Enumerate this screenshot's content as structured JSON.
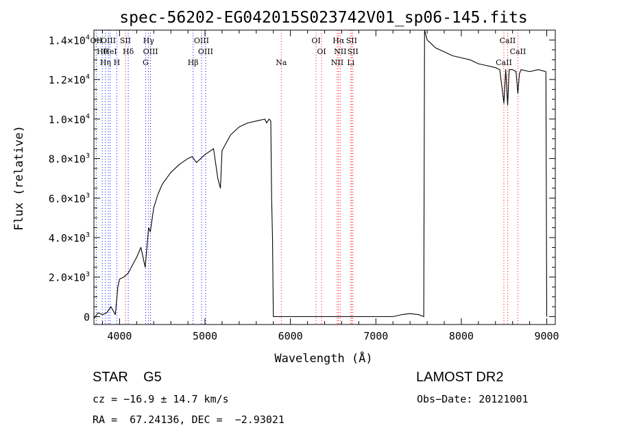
{
  "chart_data": {
    "type": "line",
    "title": "spec-56202-EG042015S023742V01_sp06-145.fits",
    "xlabel": "Wavelength (Å)",
    "ylabel": "Flux (relative)",
    "xlim": [
      3700,
      9100
    ],
    "ylim": [
      -400,
      14500
    ],
    "x_ticks": [
      4000,
      5000,
      6000,
      7000,
      8000,
      9000
    ],
    "x_tick_labels": [
      "4000",
      "5000",
      "6000",
      "7000",
      "8000",
      "9000"
    ],
    "y_ticks": [
      0,
      2000,
      4000,
      6000,
      8000,
      10000,
      12000,
      14000
    ],
    "y_tick_mantissa": [
      "0",
      "2.0×10",
      "4.0×10",
      "6.0×10",
      "8.0×10",
      "1.0×10",
      "1.2×10",
      "1.4×10"
    ],
    "y_tick_exponent": [
      "",
      "3",
      "3",
      "3",
      "3",
      "4",
      "4",
      "4"
    ],
    "series": [
      {
        "color": "#000000",
        "x": [
          3700,
          3750,
          3800,
          3850,
          3900,
          3950,
          3980,
          4000,
          4050,
          4100,
          4150,
          4200,
          4250,
          4300,
          4340,
          4360,
          4400,
          4450,
          4500,
          4600,
          4700,
          4800,
          4850,
          4900,
          5000,
          5100,
          5150,
          5180,
          5200,
          5300,
          5400,
          5500,
          5600,
          5700,
          5720,
          5750,
          5770,
          5780,
          5790,
          5800,
          6000,
          6500,
          7000,
          7200,
          7300,
          7400,
          7500,
          7560,
          7570,
          7600,
          7650,
          7700,
          7800,
          7900,
          8000,
          8100,
          8200,
          8300,
          8400,
          8450,
          8498,
          8520,
          8542,
          8560,
          8600,
          8640,
          8662,
          8680,
          8700,
          8800,
          8900,
          8990,
          9000
        ],
        "y": [
          -100,
          200,
          100,
          200,
          500,
          100,
          1500,
          1900,
          2000,
          2200,
          2600,
          3000,
          3500,
          2500,
          4500,
          4300,
          5500,
          6200,
          6700,
          7300,
          7700,
          8000,
          8100,
          7800,
          8200,
          8500,
          7000,
          6500,
          8400,
          9200,
          9600,
          9800,
          9900,
          10000,
          9800,
          10000,
          9900,
          6000,
          4000,
          0,
          0,
          0,
          0,
          0,
          100,
          150,
          100,
          0,
          14500,
          14000,
          13800,
          13600,
          13400,
          13200,
          13100,
          13000,
          12800,
          12700,
          12600,
          12500,
          10800,
          12500,
          10700,
          12500,
          12500,
          12400,
          11300,
          12300,
          12500,
          12400,
          12500,
          12400,
          0
        ]
      }
    ],
    "lines": [
      {
        "wave": 3727,
        "label": "OII"
      },
      {
        "wave": 3798,
        "label": "Hθ"
      },
      {
        "wave": 3835,
        "label": "Hη"
      },
      {
        "wave": 3869,
        "label": "OIII"
      },
      {
        "wave": 3889,
        "label": "HeI"
      },
      {
        "wave": 3968,
        "label": "H"
      },
      {
        "wave": 4069,
        "label": "SII"
      },
      {
        "wave": 4102,
        "label": "Hδ"
      },
      {
        "wave": 4305,
        "label": "G"
      },
      {
        "wave": 4340,
        "label": "Hγ"
      },
      {
        "wave": 4363,
        "label": "OIII"
      },
      {
        "wave": 4861,
        "label": "Hβ"
      },
      {
        "wave": 4959,
        "label": "OIII"
      },
      {
        "wave": 5007,
        "label": "OIII"
      },
      {
        "wave": 5893,
        "label": "Na"
      },
      {
        "wave": 6300,
        "label": "OI"
      },
      {
        "wave": 6364,
        "label": "OI"
      },
      {
        "wave": 6548,
        "label": "NII"
      },
      {
        "wave": 6563,
        "label": "Hα"
      },
      {
        "wave": 6583,
        "label": "NII"
      },
      {
        "wave": 6707,
        "label": "Li"
      },
      {
        "wave": 6716,
        "label": "SII"
      },
      {
        "wave": 6731,
        "label": "SII"
      },
      {
        "wave": 8498,
        "label": "CaII"
      },
      {
        "wave": 8542,
        "label": "CaII"
      },
      {
        "wave": 8662,
        "label": "CaII"
      }
    ],
    "line_colors": {
      "emission": "#0000ff",
      "absorption": "#ff0000"
    }
  },
  "info": {
    "class": "STAR    G5",
    "redshift": "cz = −16.9 ± 14.7 km/s",
    "coords": "RA =  67.24136, DEC =  −2.93021",
    "survey": "LAMOST DR2",
    "obs_date": "Obs−Date: 20121001"
  }
}
